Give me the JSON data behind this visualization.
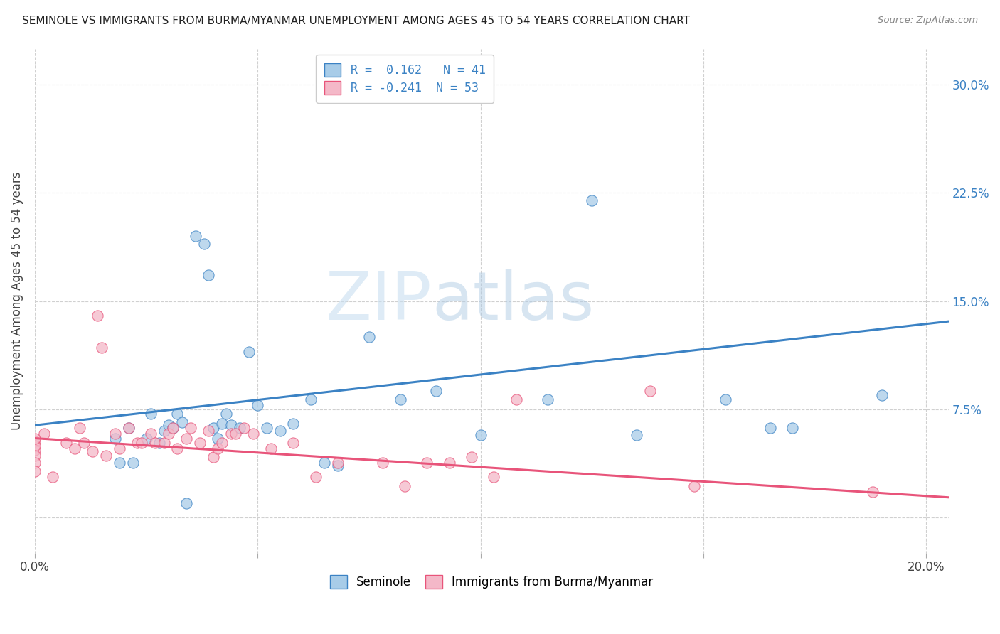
{
  "title": "SEMINOLE VS IMMIGRANTS FROM BURMA/MYANMAR UNEMPLOYMENT AMONG AGES 45 TO 54 YEARS CORRELATION CHART",
  "source": "Source: ZipAtlas.com",
  "ylabel": "Unemployment Among Ages 45 to 54 years",
  "xlim": [
    0.0,
    0.205
  ],
  "ylim": [
    -0.025,
    0.325
  ],
  "yticks": [
    0.0,
    0.075,
    0.15,
    0.225,
    0.3
  ],
  "ytick_labels_right": [
    "",
    "7.5%",
    "15.0%",
    "22.5%",
    "30.0%"
  ],
  "xticks": [
    0.0,
    0.05,
    0.1,
    0.15,
    0.2
  ],
  "xtick_labels": [
    "0.0%",
    "",
    "",
    "",
    "20.0%"
  ],
  "blue_R": 0.162,
  "blue_N": 41,
  "pink_R": -0.241,
  "pink_N": 53,
  "blue_color": "#a8cce8",
  "pink_color": "#f4b8c8",
  "blue_line_color": "#3b82c4",
  "pink_line_color": "#e8547a",
  "legend_blue_label": "Seminole",
  "legend_pink_label": "Immigrants from Burma/Myanmar",
  "watermark_zip": "ZIP",
  "watermark_atlas": "atlas",
  "background_color": "#ffffff",
  "blue_line_x0": 0.0,
  "blue_line_x1": 0.205,
  "blue_line_y0": 0.064,
  "blue_line_y1": 0.136,
  "pink_line_x0": 0.0,
  "pink_line_x1": 0.205,
  "pink_line_y0": 0.055,
  "pink_line_y1": 0.014,
  "blue_scatter_x": [
    0.018,
    0.019,
    0.021,
    0.022,
    0.025,
    0.026,
    0.028,
    0.029,
    0.03,
    0.031,
    0.032,
    0.033,
    0.034,
    0.036,
    0.038,
    0.039,
    0.04,
    0.041,
    0.042,
    0.043,
    0.044,
    0.046,
    0.048,
    0.05,
    0.052,
    0.055,
    0.058,
    0.062,
    0.065,
    0.068,
    0.075,
    0.082,
    0.09,
    0.1,
    0.115,
    0.125,
    0.135,
    0.155,
    0.165,
    0.17,
    0.19
  ],
  "blue_scatter_y": [
    0.055,
    0.038,
    0.062,
    0.038,
    0.055,
    0.072,
    0.052,
    0.06,
    0.064,
    0.062,
    0.072,
    0.066,
    0.01,
    0.195,
    0.19,
    0.168,
    0.062,
    0.055,
    0.065,
    0.072,
    0.064,
    0.062,
    0.115,
    0.078,
    0.062,
    0.06,
    0.065,
    0.082,
    0.038,
    0.036,
    0.125,
    0.082,
    0.088,
    0.057,
    0.082,
    0.22,
    0.057,
    0.082,
    0.062,
    0.062,
    0.085
  ],
  "pink_scatter_x": [
    0.0,
    0.0,
    0.0,
    0.0,
    0.0,
    0.0,
    0.0,
    0.002,
    0.004,
    0.007,
    0.009,
    0.01,
    0.011,
    0.013,
    0.014,
    0.015,
    0.016,
    0.018,
    0.019,
    0.021,
    0.023,
    0.024,
    0.026,
    0.027,
    0.029,
    0.03,
    0.031,
    0.032,
    0.034,
    0.035,
    0.037,
    0.039,
    0.04,
    0.041,
    0.042,
    0.044,
    0.045,
    0.047,
    0.049,
    0.053,
    0.058,
    0.063,
    0.068,
    0.078,
    0.083,
    0.088,
    0.093,
    0.098,
    0.103,
    0.108,
    0.138,
    0.148,
    0.188
  ],
  "pink_scatter_y": [
    0.053,
    0.047,
    0.05,
    0.055,
    0.043,
    0.038,
    0.032,
    0.058,
    0.028,
    0.052,
    0.048,
    0.062,
    0.052,
    0.046,
    0.14,
    0.118,
    0.043,
    0.058,
    0.048,
    0.062,
    0.052,
    0.052,
    0.058,
    0.052,
    0.052,
    0.058,
    0.062,
    0.048,
    0.055,
    0.062,
    0.052,
    0.06,
    0.042,
    0.048,
    0.052,
    0.058,
    0.058,
    0.062,
    0.058,
    0.048,
    0.052,
    0.028,
    0.038,
    0.038,
    0.022,
    0.038,
    0.038,
    0.042,
    0.028,
    0.082,
    0.088,
    0.022,
    0.018
  ]
}
